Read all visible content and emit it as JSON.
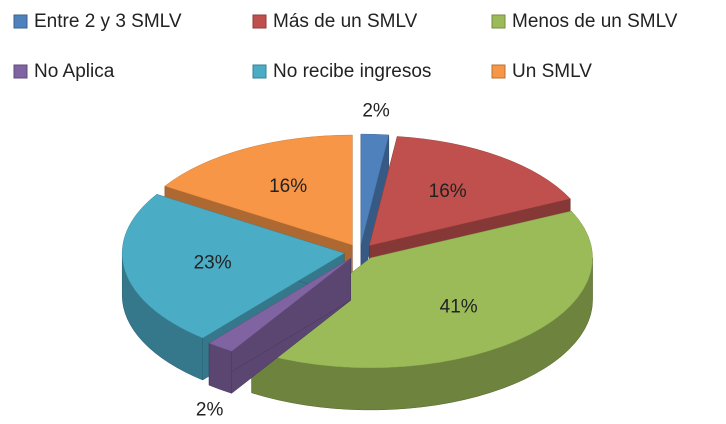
{
  "chart_data": {
    "type": "pie",
    "categories": [
      "Entre 2 y 3 SMLV",
      "Más de un SMLV",
      "Menos de un SMLV",
      "No Aplica",
      "No recibe ingresos",
      "Un SMLV"
    ],
    "values": [
      2,
      16,
      41,
      2,
      23,
      16
    ],
    "value_labels": [
      "2%",
      "16%",
      "41%",
      "2%",
      "23%",
      "16%"
    ],
    "colors": [
      "#4F81BD",
      "#C0504D",
      "#9BBB59",
      "#8064A2",
      "#4BACC6",
      "#F79646"
    ],
    "legend": "top"
  }
}
